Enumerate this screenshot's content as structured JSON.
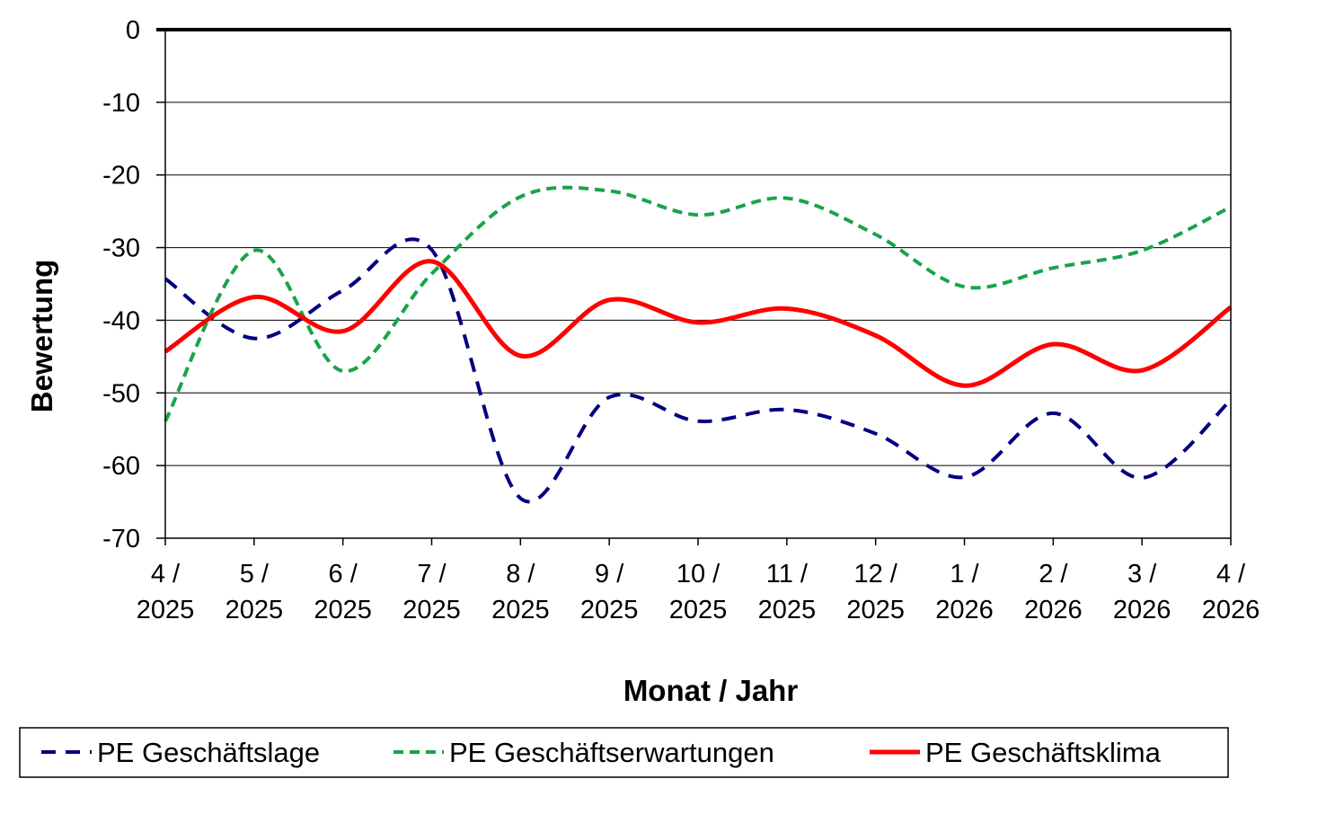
{
  "chart_data": {
    "type": "line",
    "title": "",
    "xlabel": "Monat / Jahr",
    "ylabel": "Bewertung",
    "ylim": [
      -70,
      0
    ],
    "yticks": [
      0,
      -10,
      -20,
      -30,
      -40,
      -50,
      -60,
      -70
    ],
    "grid": true,
    "legend_position": "bottom",
    "categories": [
      [
        "4 /",
        "2025"
      ],
      [
        "5 /",
        "2025"
      ],
      [
        "6 /",
        "2025"
      ],
      [
        "7 /",
        "2025"
      ],
      [
        "8 /",
        "2025"
      ],
      [
        "9 /",
        "2025"
      ],
      [
        "10 /",
        "2025"
      ],
      [
        "11 /",
        "2025"
      ],
      [
        "12 /",
        "2025"
      ],
      [
        "1 /",
        "2026"
      ],
      [
        "2 /",
        "2026"
      ],
      [
        "3 /",
        "2026"
      ],
      [
        "4 /",
        "2026"
      ]
    ],
    "series": [
      {
        "name": "PE Geschäftslage",
        "color": "#000080",
        "style": "dashed",
        "values": [
          -34.3,
          -42.5,
          -35.9,
          -30.3,
          -64.5,
          -50.6,
          -53.9,
          -52.3,
          -55.6,
          -61.6,
          -52.8,
          -61.7,
          -51.0
        ]
      },
      {
        "name": "PE Geschäftserwartungen",
        "color": "#1aa34a",
        "style": "dashed",
        "values": [
          -53.9,
          -30.4,
          -47.0,
          -33.6,
          -23.0,
          -22.2,
          -25.5,
          -23.2,
          -28.2,
          -35.4,
          -32.8,
          -30.4,
          -24.4
        ]
      },
      {
        "name": "PE Geschäftsklima",
        "color": "#ff0000",
        "style": "solid",
        "values": [
          -44.3,
          -36.8,
          -41.5,
          -31.9,
          -44.9,
          -37.2,
          -40.3,
          -38.4,
          -42.1,
          -49.0,
          -43.3,
          -46.9,
          -38.2
        ]
      }
    ]
  }
}
